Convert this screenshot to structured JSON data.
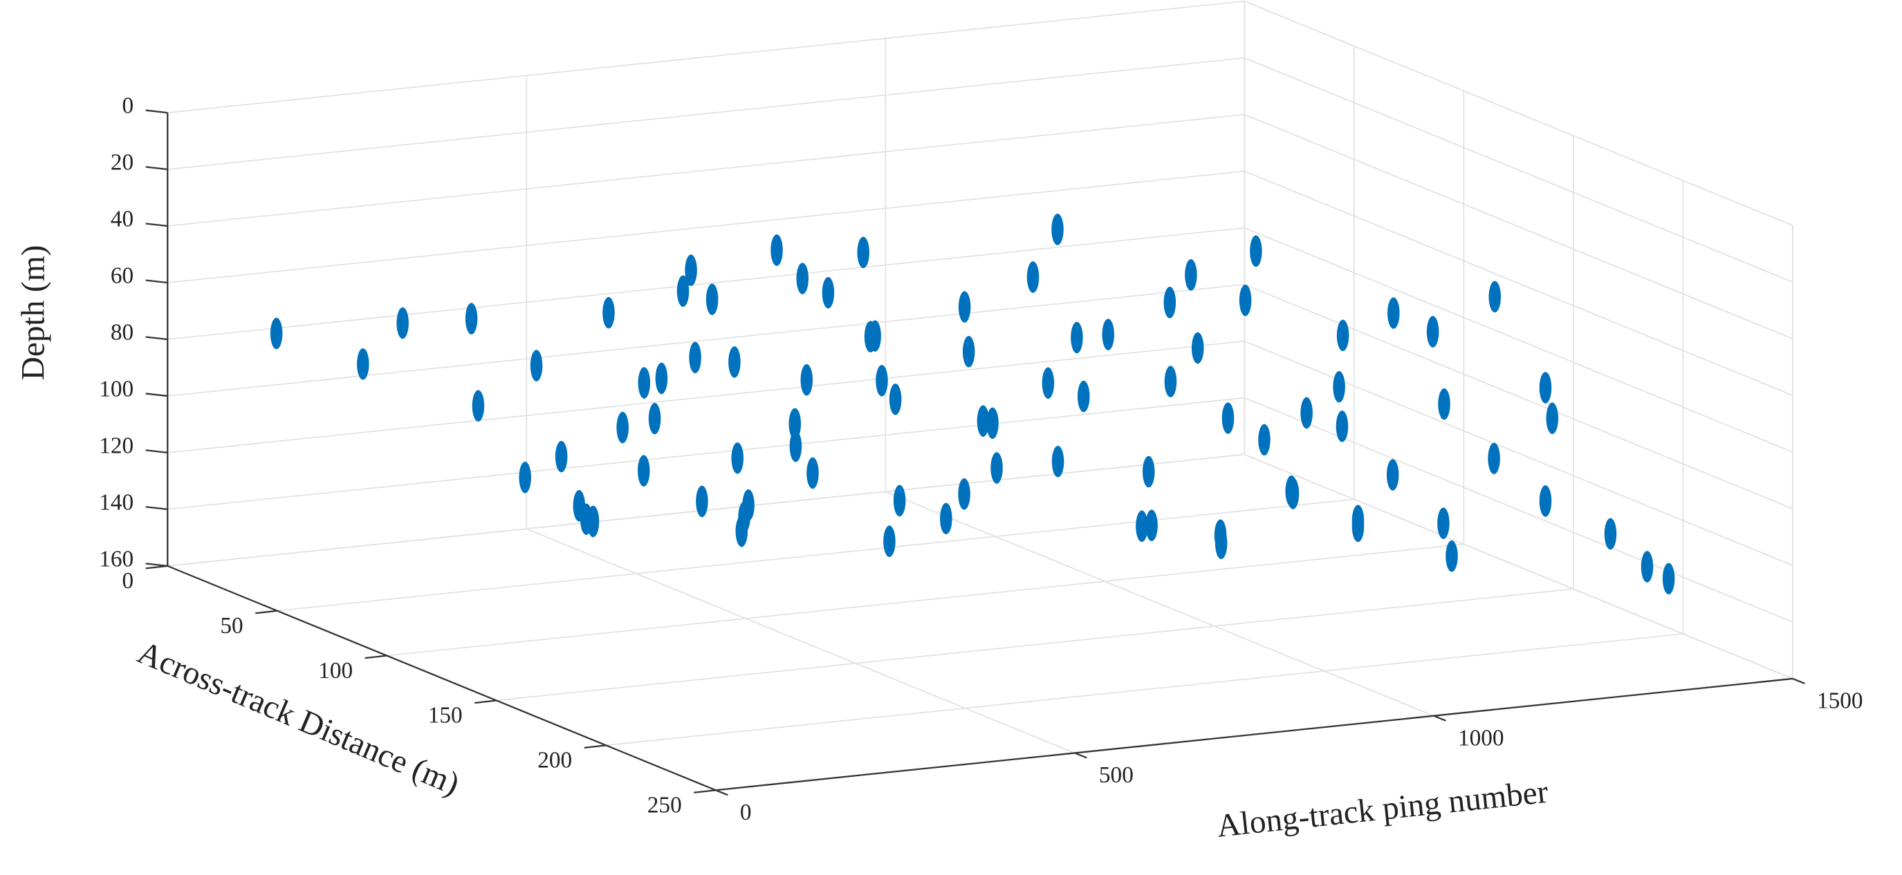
{
  "chart_data": {
    "type": "scatter3d",
    "color": "#0072bd",
    "grid": true,
    "xlabel": "Along-track ping number",
    "ylabel": "Across-track Distance (m)",
    "zlabel": "Depth (m)",
    "xlim": [
      0,
      1500
    ],
    "ylim": [
      0,
      250
    ],
    "zlim": [
      0,
      160
    ],
    "zreversed": true,
    "xticks": [
      0,
      500,
      1000,
      1500
    ],
    "yticks": [
      0,
      50,
      100,
      150,
      200,
      250
    ],
    "zticks": [
      0,
      20,
      40,
      60,
      80,
      100,
      120,
      140,
      160
    ],
    "x": [
      60,
      150,
      190,
      240,
      280,
      300,
      330,
      350,
      370,
      390,
      420,
      440,
      460,
      480,
      500,
      520,
      540,
      560,
      580,
      600,
      620,
      640,
      660,
      680,
      700,
      720,
      740,
      760,
      780,
      800,
      820,
      840,
      860,
      880,
      900,
      920,
      940,
      960,
      980,
      1000,
      1020,
      1040,
      1060,
      1080,
      1100,
      1120,
      1140,
      1160,
      1180,
      1200,
      1220,
      1240,
      1260,
      1280,
      1300,
      1320,
      1340,
      1360,
      1380,
      1400,
      1420,
      1440,
      1460,
      1480,
      400,
      450,
      500,
      550,
      600,
      650,
      700,
      750,
      800,
      850,
      900,
      950,
      1000,
      1050,
      1100,
      1150,
      1200,
      1250,
      1300,
      1350,
      1400,
      1450,
      480,
      530,
      580,
      630
    ],
    "y": [
      30,
      40,
      45,
      60,
      50,
      70,
      55,
      65,
      80,
      60,
      70,
      50,
      90,
      60,
      75,
      55,
      85,
      65,
      70,
      95,
      60,
      80,
      70,
      100,
      65,
      90,
      75,
      85,
      110,
      70,
      95,
      80,
      120,
      90,
      100,
      75,
      110,
      130,
      85,
      120,
      95,
      140,
      110,
      130,
      120,
      100,
      140,
      90,
      110,
      150,
      120,
      130,
      100,
      140,
      110,
      150,
      120,
      160,
      130,
      170,
      140,
      160,
      180,
      200,
      60,
      70,
      80,
      55,
      90,
      65,
      100,
      75,
      110,
      85,
      120,
      95,
      130,
      105,
      140,
      115,
      150,
      125,
      160,
      135,
      170,
      200,
      65,
      85,
      75,
      95
    ],
    "z": [
      70,
      80,
      65,
      60,
      95,
      75,
      120,
      110,
      55,
      130,
      100,
      140,
      70,
      120,
      45,
      90,
      135,
      60,
      115,
      80,
      140,
      50,
      105,
      65,
      125,
      85,
      45,
      130,
      70,
      100,
      60,
      140,
      80,
      120,
      50,
      110,
      90,
      130,
      40,
      115,
      75,
      135,
      60,
      95,
      140,
      55,
      120,
      85,
      45,
      130,
      100,
      70,
      135,
      60,
      110,
      90,
      125,
      50,
      140,
      80,
      115,
      95,
      130,
      140,
      135,
      85,
      125,
      60,
      105,
      45,
      138,
      75,
      95,
      130,
      65,
      118,
      80,
      140,
      100,
      60,
      128,
      90,
      140,
      70,
      120,
      135,
      100,
      75,
      130,
      50
    ]
  }
}
